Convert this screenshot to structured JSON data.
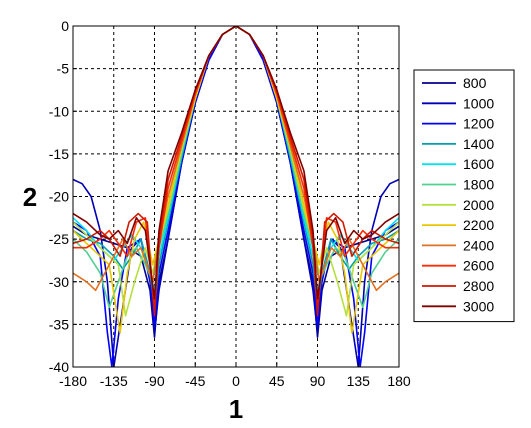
{
  "chart_data": {
    "type": "line",
    "xlabel": "1",
    "ylabel": "2",
    "xlim": [
      -180,
      180
    ],
    "ylim": [
      -40,
      0
    ],
    "xticks": [
      -180,
      -135,
      -90,
      -45,
      0,
      45,
      90,
      135,
      180
    ],
    "yticks": [
      0,
      -5,
      -10,
      -15,
      -20,
      -25,
      -30,
      -35,
      -40
    ],
    "grid": true,
    "legend_position": "right",
    "series": [
      {
        "name": "800",
        "color": "#00008f",
        "x": [
          -180,
          -165,
          -150,
          -135,
          -120,
          -105,
          -95,
          -90,
          -85,
          -75,
          -60,
          -45,
          -30,
          -15,
          0,
          15,
          30,
          45,
          60,
          75,
          85,
          90,
          95,
          105,
          120,
          135,
          150,
          165,
          180
        ],
        "y": [
          -23.5,
          -24.5,
          -25,
          -25.5,
          -26,
          -27,
          -31,
          -36.5,
          -30,
          -25,
          -16,
          -9,
          -4,
          -1,
          0,
          -1,
          -4,
          -9,
          -16,
          -25,
          -30,
          -36.5,
          -31,
          -27,
          -26,
          -25.5,
          -25,
          -24.5,
          -23.5
        ]
      },
      {
        "name": "1000",
        "color": "#0000b5",
        "x": [
          -180,
          -170,
          -160,
          -150,
          -142,
          -135,
          -125,
          -115,
          -105,
          -95,
          -90,
          -85,
          -75,
          -60,
          -45,
          -30,
          -15,
          0,
          15,
          30,
          45,
          60,
          75,
          85,
          90,
          95,
          105,
          115,
          125,
          135,
          142,
          150,
          160,
          170,
          180
        ],
        "y": [
          -18,
          -18.5,
          -20,
          -24,
          -30,
          -40,
          -33,
          -26,
          -25,
          -29,
          -36,
          -31,
          -25,
          -16,
          -9,
          -4,
          -1,
          0,
          -1,
          -4,
          -9,
          -16,
          -25,
          -31,
          -36,
          -29,
          -25,
          -26,
          -33,
          -40,
          -30,
          -24,
          -20,
          -18.5,
          -18
        ]
      },
      {
        "name": "1200",
        "color": "#0000ff",
        "x": [
          -180,
          -165,
          -150,
          -142,
          -137,
          -130,
          -120,
          -105,
          -95,
          -90,
          -85,
          -75,
          -60,
          -45,
          -30,
          -15,
          0,
          15,
          30,
          45,
          60,
          75,
          85,
          90,
          95,
          105,
          120,
          130,
          137,
          142,
          150,
          165,
          180
        ],
        "y": [
          -23,
          -24,
          -27,
          -36,
          -40,
          -32,
          -26,
          -25,
          -30,
          -35,
          -29,
          -24,
          -16,
          -9,
          -4,
          -1,
          0,
          -1,
          -4,
          -9,
          -16,
          -24,
          -29,
          -35,
          -30,
          -25,
          -26,
          -32,
          -40,
          -36,
          -27,
          -24,
          -23
        ]
      },
      {
        "name": "1400",
        "color": "#00a0b0",
        "x": [
          -180,
          -165,
          -150,
          -135,
          -125,
          -115,
          -105,
          -95,
          -90,
          -85,
          -75,
          -60,
          -45,
          -30,
          -15,
          0,
          15,
          30,
          45,
          60,
          75,
          85,
          90,
          95,
          105,
          115,
          125,
          135,
          150,
          165,
          180
        ],
        "y": [
          -24,
          -25,
          -25.5,
          -27,
          -28.5,
          -27,
          -25,
          -29,
          -33,
          -28,
          -23,
          -15.5,
          -8.5,
          -3.5,
          -1,
          0,
          -1,
          -3.5,
          -8.5,
          -15.5,
          -23,
          -28,
          -33,
          -29,
          -25,
          -27,
          -28.5,
          -27,
          -25.5,
          -25,
          -24
        ]
      },
      {
        "name": "1600",
        "color": "#00e5f0",
        "x": [
          -180,
          -165,
          -150,
          -135,
          -125,
          -115,
          -105,
          -95,
          -90,
          -85,
          -75,
          -60,
          -45,
          -30,
          -15,
          0,
          15,
          30,
          45,
          60,
          75,
          85,
          90,
          95,
          105,
          115,
          125,
          135,
          150,
          165,
          180
        ],
        "y": [
          -22.5,
          -24,
          -26,
          -27.5,
          -26,
          -24.5,
          -26,
          -29,
          -31,
          -27,
          -22.5,
          -15,
          -8.5,
          -3.5,
          -1,
          0,
          -1,
          -3.5,
          -8.5,
          -15,
          -22.5,
          -27,
          -31,
          -29,
          -26,
          -24.5,
          -26,
          -27.5,
          -26,
          -24,
          -22.5
        ]
      },
      {
        "name": "1800",
        "color": "#50d090",
        "x": [
          -180,
          -165,
          -150,
          -140,
          -130,
          -120,
          -110,
          -100,
          -92,
          -85,
          -75,
          -60,
          -45,
          -30,
          -15,
          0,
          15,
          30,
          45,
          60,
          75,
          85,
          92,
          100,
          110,
          120,
          130,
          140,
          150,
          165,
          180
        ],
        "y": [
          -25,
          -26.5,
          -29,
          -33,
          -30,
          -27,
          -26,
          -28,
          -30,
          -26,
          -22,
          -15,
          -8.5,
          -3.5,
          -1,
          0,
          -1,
          -3.5,
          -8.5,
          -15,
          -22,
          -26,
          -30,
          -28,
          -26,
          -27,
          -30,
          -33,
          -29,
          -26.5,
          -25
        ]
      },
      {
        "name": "2000",
        "color": "#b5e040",
        "x": [
          -180,
          -165,
          -150,
          -140,
          -130,
          -122,
          -112,
          -100,
          -92,
          -85,
          -75,
          -60,
          -45,
          -30,
          -15,
          0,
          15,
          30,
          45,
          60,
          75,
          85,
          92,
          100,
          112,
          122,
          130,
          140,
          150,
          165,
          180
        ],
        "y": [
          -23,
          -24.5,
          -26,
          -27,
          -28,
          -34,
          -30,
          -26,
          -29,
          -25.5,
          -21.5,
          -14.5,
          -8.5,
          -3.5,
          -1,
          0,
          -1,
          -3.5,
          -8.5,
          -14.5,
          -21.5,
          -25.5,
          -29,
          -26,
          -30,
          -34,
          -28,
          -27,
          -26,
          -24.5,
          -23
        ]
      },
      {
        "name": "2200",
        "color": "#e8c800",
        "x": [
          -180,
          -165,
          -150,
          -140,
          -128,
          -120,
          -112,
          -102,
          -92,
          -85,
          -75,
          -60,
          -45,
          -30,
          -15,
          0,
          15,
          30,
          45,
          60,
          75,
          85,
          92,
          102,
          112,
          120,
          128,
          140,
          150,
          165,
          180
        ],
        "y": [
          -24,
          -25.5,
          -27,
          -28,
          -36,
          -29,
          -25,
          -23,
          -28,
          -25,
          -21,
          -14,
          -8.5,
          -3.5,
          -1,
          0,
          -1,
          -3.5,
          -8.5,
          -14,
          -21,
          -25,
          -28,
          -23,
          -25,
          -29,
          -36,
          -28,
          -27,
          -25.5,
          -24
        ]
      },
      {
        "name": "2400",
        "color": "#e07020",
        "x": [
          -180,
          -165,
          -155,
          -145,
          -135,
          -125,
          -115,
          -105,
          -92,
          -85,
          -75,
          -60,
          -45,
          -30,
          -15,
          0,
          15,
          30,
          45,
          60,
          75,
          85,
          92,
          105,
          115,
          125,
          135,
          145,
          155,
          165,
          180
        ],
        "y": [
          -29,
          -30,
          -31,
          -29,
          -27,
          -25,
          -27,
          -26,
          -30,
          -25,
          -20,
          -14,
          -8,
          -3.5,
          -1,
          0,
          -1,
          -3.5,
          -8,
          -14,
          -20,
          -25,
          -30,
          -26,
          -27,
          -25,
          -27,
          -29,
          -31,
          -30,
          -29
        ]
      },
      {
        "name": "2600",
        "color": "#ff2a00",
        "x": [
          -180,
          -165,
          -150,
          -140,
          -130,
          -120,
          -110,
          -100,
          -90,
          -85,
          -75,
          -60,
          -45,
          -30,
          -15,
          0,
          15,
          30,
          45,
          60,
          75,
          85,
          90,
          100,
          110,
          120,
          130,
          140,
          150,
          165,
          180
        ],
        "y": [
          -26,
          -26,
          -25,
          -24,
          -25.5,
          -27,
          -23,
          -22.5,
          -33,
          -26,
          -19,
          -13.5,
          -8,
          -3.5,
          -1,
          0,
          -1,
          -3.5,
          -8,
          -13.5,
          -19,
          -26,
          -33,
          -22.5,
          -23,
          -27,
          -25.5,
          -24,
          -25,
          -26,
          -26
        ]
      },
      {
        "name": "2800",
        "color": "#d01a00",
        "x": [
          -180,
          -165,
          -150,
          -140,
          -128,
          -118,
          -108,
          -98,
          -90,
          -85,
          -75,
          -60,
          -45,
          -30,
          -15,
          0,
          15,
          30,
          45,
          60,
          75,
          85,
          90,
          98,
          108,
          118,
          128,
          140,
          150,
          165,
          180
        ],
        "y": [
          -25.5,
          -25,
          -24,
          -25,
          -27,
          -23,
          -22,
          -23,
          -34,
          -25,
          -18,
          -13,
          -7.5,
          -3.5,
          -1,
          0,
          -1,
          -3.5,
          -7.5,
          -13,
          -18,
          -25,
          -34,
          -23,
          -22,
          -23,
          -27,
          -25,
          -24,
          -25,
          -25.5
        ]
      },
      {
        "name": "3000",
        "color": "#800000",
        "x": [
          -180,
          -165,
          -150,
          -140,
          -130,
          -120,
          -110,
          -100,
          -90,
          -85,
          -75,
          -60,
          -45,
          -30,
          -15,
          0,
          15,
          30,
          45,
          60,
          75,
          85,
          90,
          100,
          110,
          120,
          130,
          140,
          150,
          165,
          180
        ],
        "y": [
          -22,
          -23,
          -24.5,
          -25,
          -24,
          -25.5,
          -22.5,
          -24,
          -32,
          -24,
          -17,
          -12.5,
          -7.5,
          -3.5,
          -1,
          0,
          -1,
          -3.5,
          -7.5,
          -12.5,
          -17,
          -24,
          -32,
          -24,
          -22.5,
          -25.5,
          -24,
          -25,
          -24.5,
          -23,
          -22
        ]
      }
    ]
  }
}
